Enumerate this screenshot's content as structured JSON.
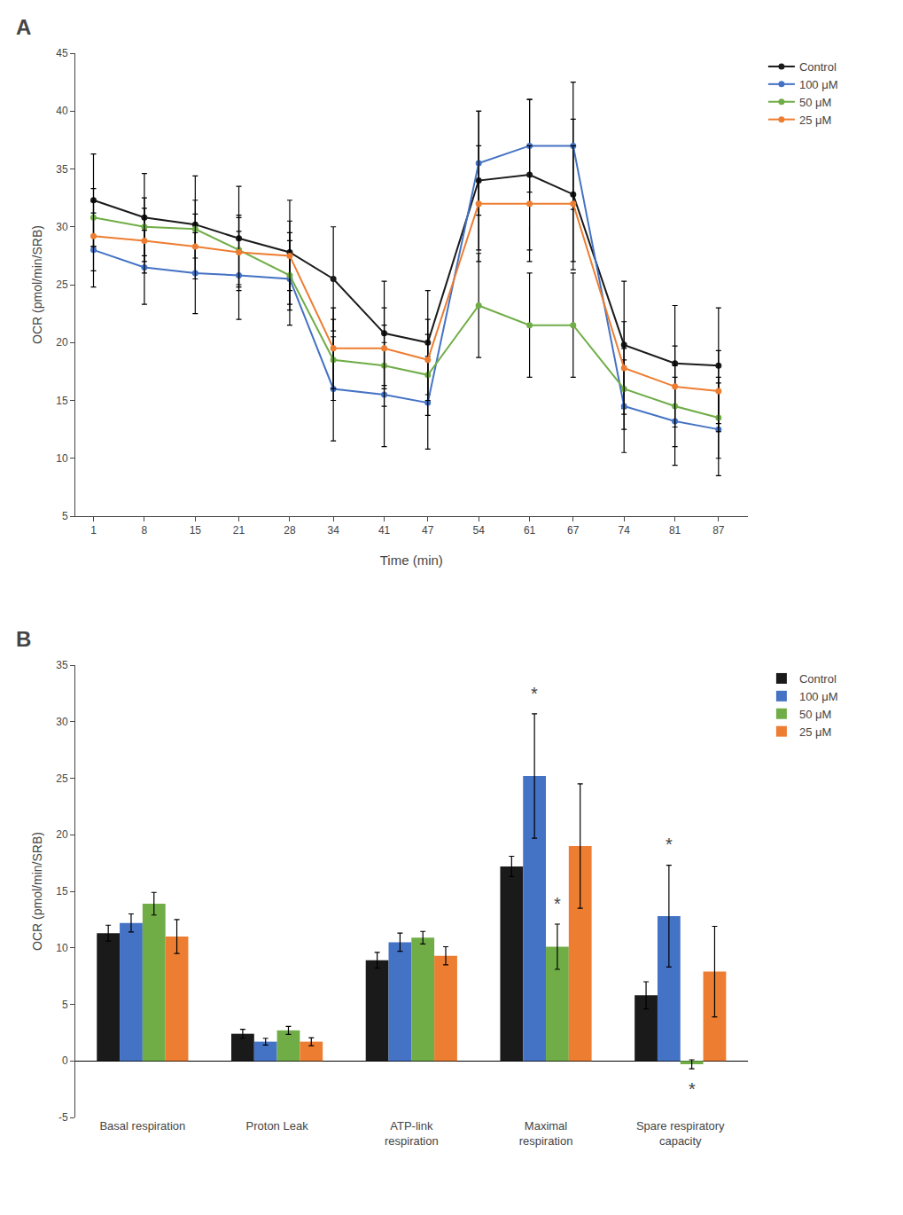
{
  "chart_data": [
    {
      "type": "line",
      "x": [
        1,
        8,
        15,
        21,
        28,
        34,
        41,
        47,
        54,
        61,
        67,
        74,
        81,
        87
      ],
      "xlabel": "Time (min)",
      "ylabel": "OCR (pmol/min/SRB)",
      "xlim": [
        -1.5,
        91
      ],
      "xticks": [
        1,
        8,
        15,
        21,
        28,
        34,
        41,
        47,
        54,
        61,
        67,
        74,
        81,
        87
      ],
      "ylim": [
        5,
        45
      ],
      "yticks": [
        5,
        10,
        15,
        20,
        25,
        30,
        35,
        40,
        45
      ],
      "grid": false,
      "legend": "right",
      "marker": "circle",
      "line_style": "solid",
      "annotations": [
        {
          "text": "A"
        }
      ],
      "series": [
        {
          "name": "Control",
          "color": "#1a1a1a",
          "values": [
            32.3,
            30.8,
            30.2,
            29.0,
            27.8,
            25.5,
            20.8,
            20.0,
            34.0,
            34.5,
            32.8,
            19.8,
            18.2,
            18.0
          ],
          "errors": [
            4.0,
            3.8,
            4.2,
            4.5,
            4.5,
            4.5,
            4.5,
            4.5,
            6.0,
            6.5,
            6.5,
            5.5,
            5.0,
            5.0
          ]
        },
        {
          "name": "100 μM",
          "color": "#4472C4",
          "values": [
            28.0,
            26.5,
            26.0,
            25.8,
            25.5,
            16.0,
            15.5,
            14.8,
            35.5,
            37.0,
            37.0,
            14.5,
            13.2,
            12.5
          ],
          "errors": [
            3.2,
            3.2,
            3.5,
            3.8,
            4.0,
            4.5,
            4.5,
            4.0,
            4.5,
            4.0,
            5.5,
            4.0,
            3.8,
            4.0
          ]
        },
        {
          "name": "50 μM",
          "color": "#70AD47",
          "values": [
            30.8,
            30.0,
            29.8,
            28.0,
            25.8,
            18.5,
            18.0,
            17.2,
            23.2,
            21.5,
            21.5,
            16.0,
            14.5,
            13.5
          ],
          "errors": [
            2.5,
            2.5,
            2.5,
            3.0,
            3.0,
            3.5,
            3.5,
            3.5,
            4.5,
            4.5,
            4.5,
            3.5,
            3.5,
            3.5
          ]
        },
        {
          "name": "25 μM",
          "color": "#ED7D31",
          "values": [
            29.2,
            28.8,
            28.3,
            27.8,
            27.5,
            19.5,
            19.5,
            18.5,
            32.0,
            32.0,
            32.0,
            17.8,
            16.2,
            15.8
          ],
          "errors": [
            3.0,
            2.8,
            2.8,
            3.0,
            3.0,
            3.5,
            3.5,
            3.5,
            5.0,
            5.0,
            5.0,
            4.0,
            3.5,
            3.5
          ]
        }
      ]
    },
    {
      "type": "bar",
      "categories": [
        "Basal respiration",
        "Proton Leak",
        "ATP-link\nrespiration",
        "Maximal\nrespiration",
        "Spare respiratory\ncapacity"
      ],
      "ylabel": "OCR (pmol/min/SRB)",
      "ylim": [
        -5,
        35
      ],
      "yticks": [
        -5,
        0,
        5,
        10,
        15,
        20,
        25,
        30,
        35
      ],
      "grid": false,
      "legend": "right",
      "annotations": [
        {
          "text": "B"
        },
        {
          "text": "*",
          "category": "Maximal\nrespiration",
          "series": "100 μM",
          "y": 31.5
        },
        {
          "text": "*",
          "category": "Maximal\nrespiration",
          "series": "50 μM",
          "y": 12.9
        },
        {
          "text": "*",
          "category": "Spare respiratory\ncapacity",
          "series": "100 μM",
          "y": 18.1
        },
        {
          "text": "*",
          "category": "Spare respiratory\ncapacity",
          "series": "50 μM",
          "y": -1.5
        }
      ],
      "series": [
        {
          "name": "Control",
          "color": "#1a1a1a",
          "values": [
            11.3,
            2.4,
            8.9,
            17.2,
            5.8
          ],
          "errors": [
            0.7,
            0.4,
            0.7,
            0.9,
            1.2
          ]
        },
        {
          "name": "100 μM",
          "color": "#4472C4",
          "values": [
            12.2,
            1.7,
            10.5,
            25.2,
            12.8
          ],
          "errors": [
            0.8,
            0.3,
            0.8,
            5.5,
            4.5
          ]
        },
        {
          "name": "50 μM",
          "color": "#70AD47",
          "values": [
            13.9,
            2.7,
            10.9,
            10.1,
            -0.3
          ],
          "errors": [
            1.0,
            0.35,
            0.55,
            2.0,
            0.4
          ]
        },
        {
          "name": "25 μM",
          "color": "#ED7D31",
          "values": [
            11.0,
            1.7,
            9.3,
            19.0,
            7.9
          ],
          "errors": [
            1.5,
            0.35,
            0.8,
            5.5,
            4.0
          ]
        }
      ]
    }
  ]
}
